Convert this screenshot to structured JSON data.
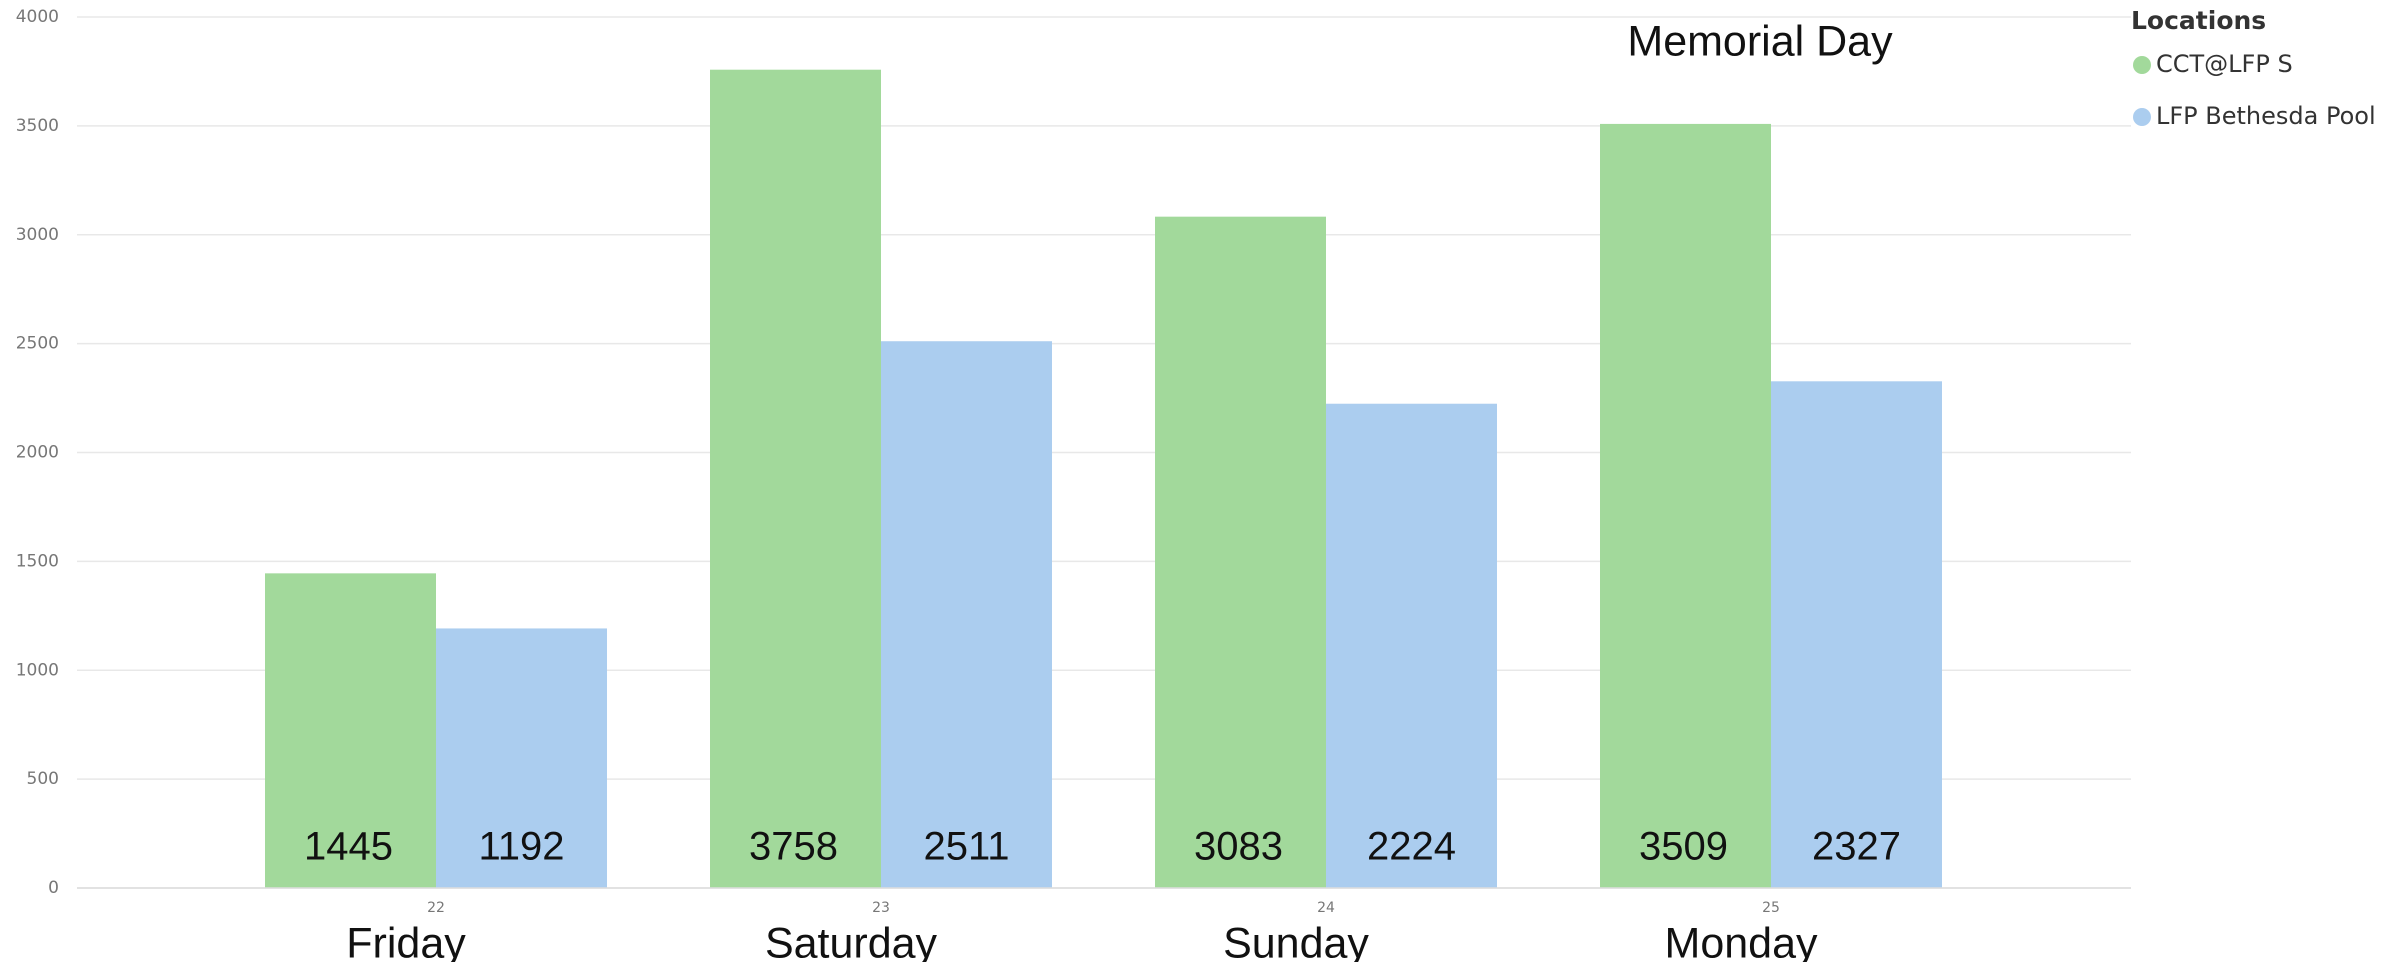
{
  "chart_data": {
    "type": "bar",
    "categories": [
      "22",
      "23",
      "24",
      "25"
    ],
    "day_labels": [
      "Friday",
      "Saturday",
      "Sunday",
      "Monday"
    ],
    "annotation": "Memorial Day",
    "legend_title": "Locations",
    "legend": "top-right",
    "series": [
      {
        "name": "CCT@LFP S",
        "color": "#a2d99b",
        "values": [
          1445,
          3758,
          3083,
          3509
        ]
      },
      {
        "name": "LFP Bethesda Pool",
        "color": "#abcdef",
        "values": [
          1192,
          2511,
          2224,
          2327
        ]
      }
    ],
    "ylim": [
      0,
      4000
    ],
    "yticks": [
      0,
      500,
      1000,
      1500,
      2000,
      2500,
      3000,
      3500,
      4000
    ],
    "grid": true
  }
}
